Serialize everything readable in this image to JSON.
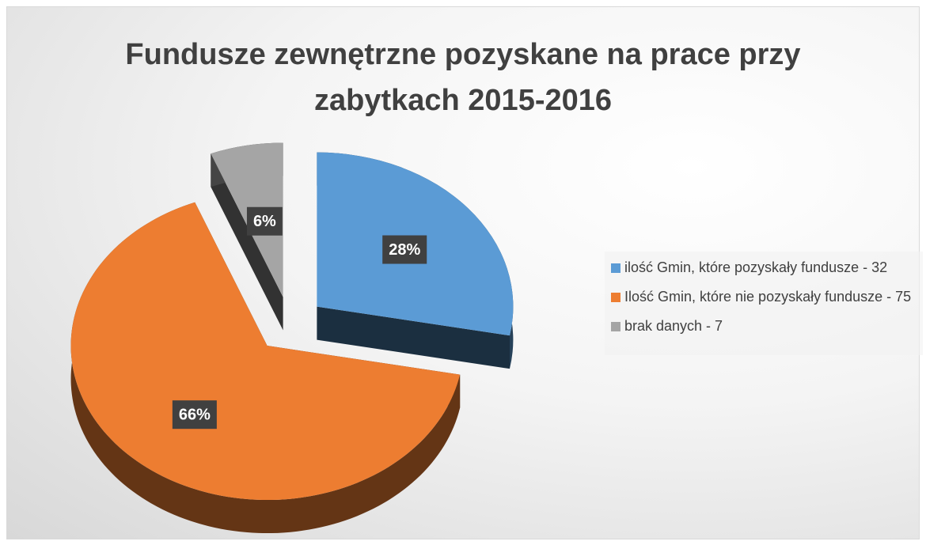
{
  "chart_data": {
    "type": "pie",
    "title": "Fundusze zewnętrzne pozyskane na prace przy zabytkach 2015-2016",
    "categories": [
      "ilość Gmin, które pozyskały fundusze - 32",
      "Ilość Gmin, które nie pozyskały fundusze - 75",
      "brak danych - 7"
    ],
    "values": [
      28,
      66,
      6
    ],
    "value_labels": [
      "28%",
      "66%",
      "6%"
    ],
    "colors": [
      "#5b9bd5",
      "#ed7d31",
      "#a5a5a5"
    ],
    "legend": "right"
  }
}
